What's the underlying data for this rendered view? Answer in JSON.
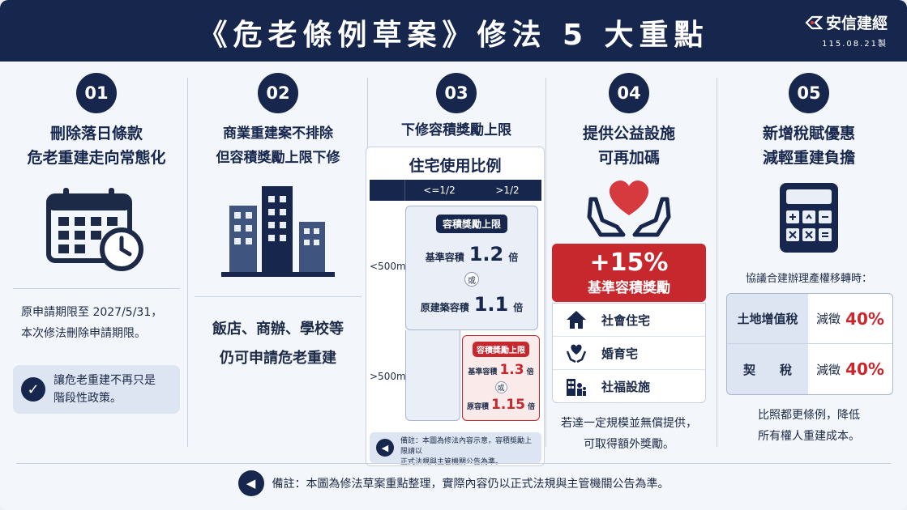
{
  "header": {
    "title": "《危老條例草案》修法 5 大重點",
    "logo_name": "安信建經",
    "logo_date": "115.08.21製"
  },
  "colors": {
    "navy": "#16264d",
    "red": "#c7282d",
    "panel": "#dde5f2"
  },
  "col1": {
    "num": "01",
    "title1": "刪除落日條款",
    "title2": "危老重建走向常態化",
    "icon": "calendar-clock-icon",
    "text1": "原申請期限至 2027/5/31，",
    "text2": "本次修法刪除申請期限。",
    "note1": "讓危老重建不再只是",
    "note2": "階段性政策。"
  },
  "col2": {
    "num": "02",
    "title1": "商業重建案不排除",
    "title2": "但容積獎勵上限下修",
    "icon": "buildings-icon",
    "text1": "飯店、商辦、學校等",
    "text2": "仍可申請危老重建"
  },
  "col3": {
    "num": "03",
    "title": "下修容積獎勵上限",
    "table_title": "住宅使用比例",
    "head1": "<=1/2",
    "head2": ">1/2",
    "row1": "<500m²",
    "row2": ">500m²",
    "panel1": {
      "label": "容積獎勵上限",
      "base_label": "基準容積",
      "base_val": "1.2",
      "unit": "倍",
      "or": "或",
      "orig_label": "原建築容積",
      "orig_val": "1.1"
    },
    "panel2": {
      "label": "容積獎勵上限",
      "base_label": "基準容積",
      "base_val": "1.3",
      "unit": "倍",
      "or": "或",
      "orig_label": "原容積",
      "orig_val": "1.15"
    },
    "note1": "備註：本圖為修法內容示意，容積獎勵上限請以",
    "note2": "正式法規與主管機關公告為準。"
  },
  "col4": {
    "num": "04",
    "title1": "提供公益設施",
    "title2": "可再加碼",
    "icon": "hands-heart-icon",
    "bonus_pct": "+15%",
    "bonus_label": "基準容積獎勵",
    "items": [
      {
        "label": "社會住宅",
        "icon": "house-icon"
      },
      {
        "label": "婚育宅",
        "icon": "heart-hands-icon"
      },
      {
        "label": "社福設施",
        "icon": "family-building-icon"
      }
    ],
    "text1": "若達一定規模並無償提供，",
    "text2": "可取得額外獎勵。"
  },
  "col5": {
    "num": "05",
    "title1": "新增稅賦優惠",
    "title2": "減輕重建負擔",
    "icon": "calculator-icon",
    "intro": "協議合建辦理產權移轉時：",
    "taxes": [
      {
        "name": "土地增值稅",
        "prefix": "減徵",
        "value": "40%"
      },
      {
        "name": "契　　稅",
        "prefix": "減徵",
        "value": "40%"
      }
    ],
    "text1": "比照都更條例，降低",
    "text2": "所有權人重建成本。"
  },
  "footer": {
    "text": "備註：本圖為修法草案重點整理，實際內容仍以正式法規與主管機關公告為準。",
    "icon": "megaphone-icon"
  }
}
